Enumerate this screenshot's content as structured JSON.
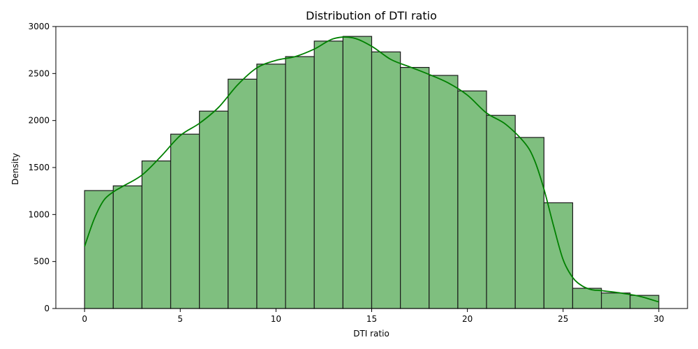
{
  "chart_data": {
    "type": "bar",
    "subtype": "histogram with KDE overlay",
    "title": "Distribution of DTI ratio",
    "xlabel": "DTI ratio",
    "ylabel": "Density",
    "xlim": [
      -1.5,
      31.5
    ],
    "ylim": [
      0,
      3000
    ],
    "xticks": [
      0,
      5,
      10,
      15,
      20,
      25,
      30
    ],
    "yticks": [
      0,
      500,
      1000,
      1500,
      2000,
      2500,
      3000
    ],
    "bin_edges": [
      0,
      1.5,
      3,
      4.5,
      6,
      7.5,
      9,
      10.5,
      12,
      13.5,
      15,
      16.5,
      18,
      19.5,
      21,
      22.5,
      24,
      25.5,
      27,
      28.5,
      30
    ],
    "values": [
      1255,
      1305,
      1570,
      1855,
      2100,
      2440,
      2600,
      2680,
      2845,
      2895,
      2730,
      2565,
      2480,
      2315,
      2055,
      1820,
      1125,
      215,
      165,
      140
    ],
    "bar_color": "#7fbf7f",
    "bar_edge_color": "#1a1a1a",
    "kde": {
      "color": "#008000",
      "x": [
        0,
        0.5,
        1,
        1.5,
        2,
        3,
        4,
        5,
        6,
        7,
        8,
        9,
        10,
        11,
        12,
        13,
        14,
        15,
        16,
        17,
        18,
        19,
        20,
        21,
        22,
        23,
        23.5,
        24,
        24.5,
        25,
        25.5,
        26,
        26.5,
        27,
        28,
        29,
        30
      ],
      "y": [
        660,
        950,
        1150,
        1240,
        1300,
        1420,
        1620,
        1840,
        1970,
        2140,
        2380,
        2560,
        2640,
        2680,
        2760,
        2870,
        2880,
        2790,
        2650,
        2570,
        2490,
        2400,
        2270,
        2080,
        1960,
        1760,
        1580,
        1270,
        880,
        520,
        330,
        240,
        200,
        190,
        165,
        130,
        70
      ]
    },
    "grid": false,
    "legend": "none"
  }
}
